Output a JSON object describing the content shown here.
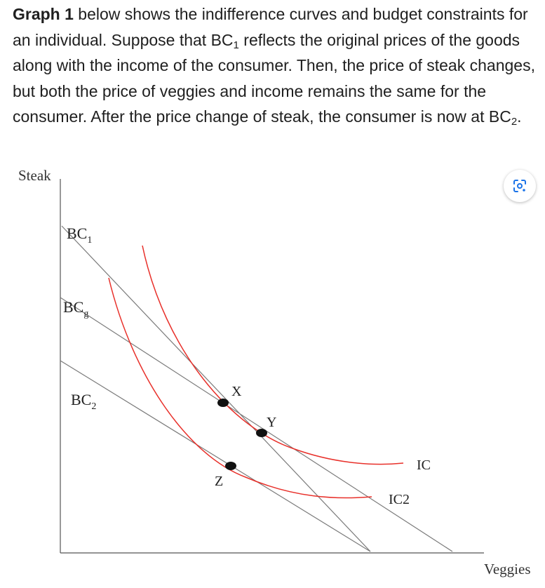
{
  "question": {
    "lead": "Graph 1",
    "line1_rest": " below shows the indifference curves and budget constraints for an individual. Suppose that BC",
    "sub1": "1",
    "line2": " reflects the original prices of the goods along with the income of the consumer. Then, the price of steak changes, but both the price of veggies and income remains the same for the consumer. After the price change of steak, the consumer is now at BC",
    "sub2": "2",
    "end": "."
  },
  "graph": {
    "y_axis_label": "Steak",
    "x_axis_label": "Veggies",
    "bc1_main": "BC",
    "bc1_sub": "1",
    "bcg_main": "BC",
    "bcg_sub": "g",
    "bc2_main": "BC",
    "bc2_sub": "2",
    "point_x": "X",
    "point_y": "Y",
    "point_z": "Z",
    "curve_ic": "IC",
    "curve_ic2": "IC2",
    "curve_color": "#e8302a",
    "line_color": "#777777"
  },
  "lens": {
    "icon": "google-lens-icon"
  }
}
